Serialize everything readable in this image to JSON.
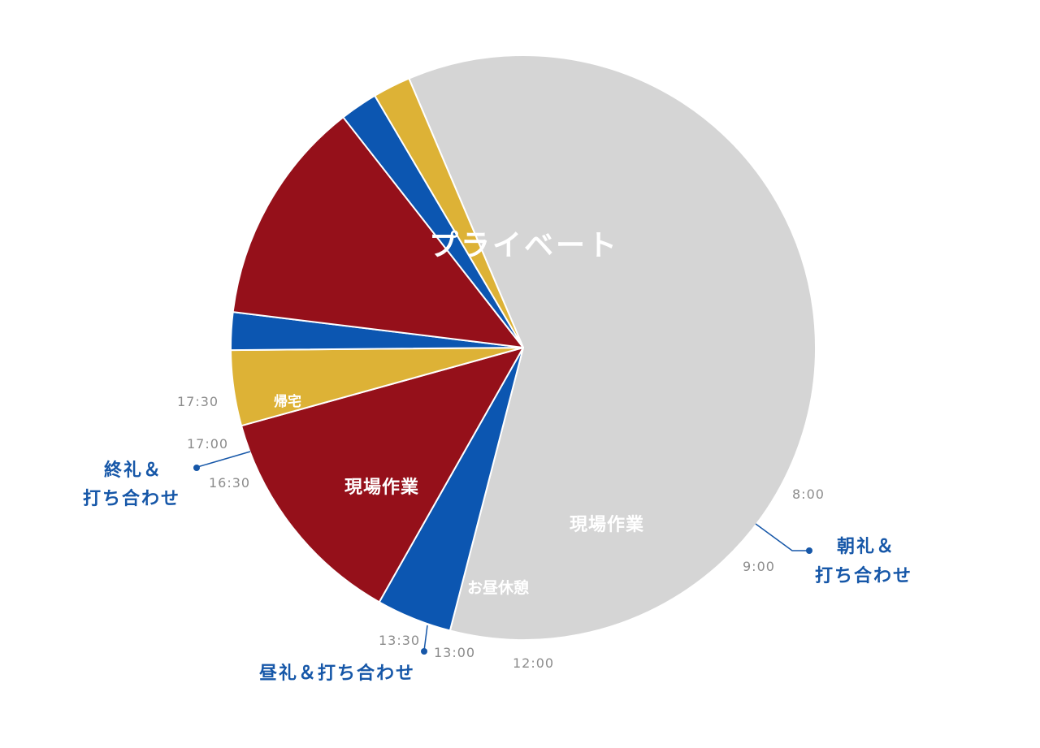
{
  "chart_data": {
    "type": "pie",
    "unit": "hours",
    "segments": [
      {
        "label": "プライベート",
        "value": 14.5,
        "color": "#d5d5d5"
      },
      {
        "label": "朝礼＆打ち合わせ",
        "value": 1.0,
        "color": "#0c56b1"
      },
      {
        "label": "現場作業",
        "value": 3.0,
        "color": "#95101a"
      },
      {
        "label": "お昼休憩",
        "value": 1.0,
        "color": "#ddb236"
      },
      {
        "label": "昼礼＆打ち合わせ",
        "value": 0.5,
        "color": "#0c56b1"
      },
      {
        "label": "現場作業",
        "value": 3.0,
        "color": "#95101a"
      },
      {
        "label": "終礼＆打ち合わせ",
        "value": 0.5,
        "color": "#0c56b1"
      },
      {
        "label": "帰宅",
        "value": 0.5,
        "color": "#ddb236"
      }
    ],
    "time_labels": [
      "8:00",
      "9:00",
      "12:00",
      "13:00",
      "13:30",
      "16:30",
      "17:00",
      "17:30"
    ]
  },
  "labels": {
    "private": "プライベート",
    "field_work_right": "現場作業",
    "field_work_left": "現場作業",
    "lunch": "お昼休憩",
    "home": "帰宅",
    "morning_line1": "朝礼＆",
    "morning_line2": "打ち合わせ",
    "noon": "昼礼＆打ち合わせ",
    "evening_line1": "終礼＆",
    "evening_line2": "打ち合わせ"
  },
  "colors": {
    "callout": "#1657a8",
    "time_text": "#8c8c8c"
  }
}
